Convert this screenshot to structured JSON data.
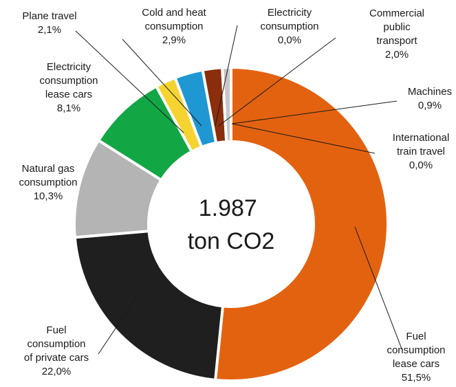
{
  "chart_data": {
    "type": "pie",
    "variant": "donut",
    "center_text": [
      "1.987",
      "ton CO2"
    ],
    "slices": [
      {
        "key": "fuel-lease",
        "label": [
          "Fuel",
          "consumption",
          "lease cars",
          "51,5%"
        ],
        "value": 51.5,
        "color": "#E36210"
      },
      {
        "key": "fuel-private",
        "label": [
          "Fuel",
          "consumption",
          "of private cars",
          "22,0%"
        ],
        "value": 22.0,
        "color": "#1F1F1F"
      },
      {
        "key": "natural-gas",
        "label": [
          "Natural gas",
          "consumption",
          "10,3%"
        ],
        "value": 10.3,
        "color": "#B4B4B4"
      },
      {
        "key": "electricity-lease",
        "label": [
          "Electricity",
          "consumption",
          "lease cars",
          "8,1%"
        ],
        "value": 8.1,
        "color": "#13A645"
      },
      {
        "key": "plane-travel",
        "label": [
          "Plane travel",
          "2,1%"
        ],
        "value": 2.1,
        "color": "#F5D431"
      },
      {
        "key": "cold-heat",
        "label": [
          "Cold and heat",
          "consumption",
          "2,9%"
        ],
        "value": 2.9,
        "color": "#1F97D3"
      },
      {
        "key": "electricity",
        "label": [
          "Electricity",
          "consumption",
          "0,0%"
        ],
        "value": 0.0,
        "color": "#7F7F7F"
      },
      {
        "key": "public-transport",
        "label": [
          "Commercial",
          "public",
          "transport",
          "2,0%"
        ],
        "value": 2.0,
        "color": "#8A2E0C"
      },
      {
        "key": "international-train",
        "label": [
          "International",
          "train travel",
          "0,0%"
        ],
        "value": 0.0,
        "color": "#2E6F8F"
      },
      {
        "key": "machines",
        "label": [
          "Machines",
          "0,9%"
        ],
        "value": 0.9,
        "color": "#C8C8C8"
      }
    ]
  }
}
